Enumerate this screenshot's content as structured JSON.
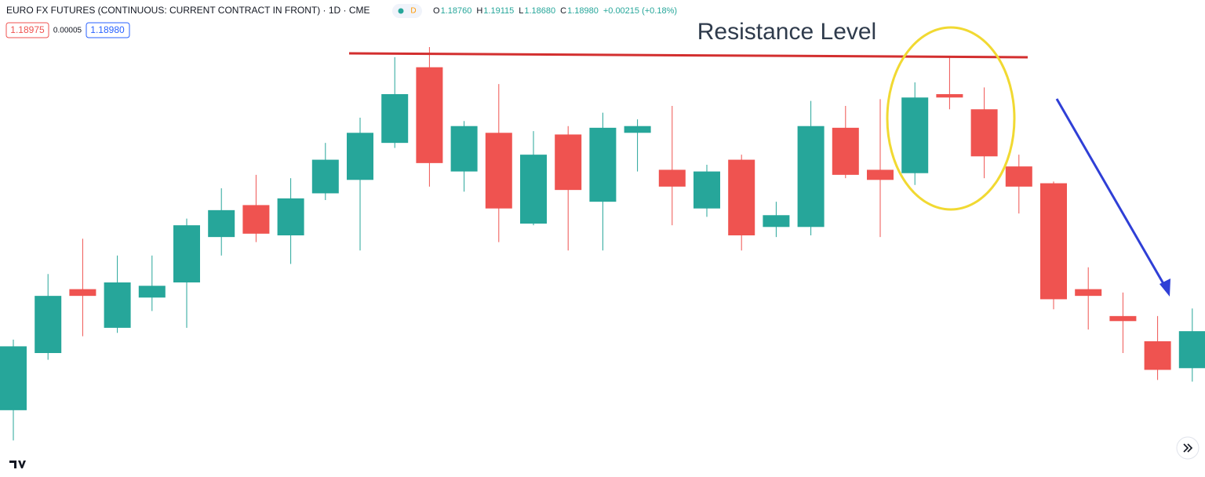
{
  "header": {
    "title": "EURO FX FUTURES (CONTINUOUS: CURRENT CONTRACT IN FRONT) · 1D · CME",
    "badge": "D",
    "ohlc": [
      {
        "key": "O",
        "value": "1.18760"
      },
      {
        "key": "H",
        "value": "1.19115"
      },
      {
        "key": "L",
        "value": "1.18680"
      },
      {
        "key": "C",
        "value": "1.18980"
      }
    ],
    "change": "+0.00215 (+0.18%)",
    "bid": "1.18975",
    "spread": "0.00005",
    "ask": "1.18980"
  },
  "chart_data": {
    "type": "candlestick",
    "annotation": "Resistance Level",
    "up_color": "#26a69a",
    "down_color": "#ef5350",
    "ylim": [
      1.1815,
      1.2095
    ],
    "open": [
      1.1851,
      1.1885,
      1.1923,
      1.19,
      1.1918,
      1.1927,
      1.1954,
      1.1973,
      1.1955,
      1.198,
      1.1988,
      1.201,
      1.2055,
      1.1993,
      1.2016,
      1.1962,
      1.2015,
      1.1975,
      1.2016,
      1.1994,
      1.1971,
      1.2,
      1.196,
      1.196,
      1.2019,
      1.1994,
      1.1992,
      1.2039,
      1.203,
      1.1996,
      1.1986,
      1.1923,
      1.1907,
      1.1892,
      1.1876
    ],
    "high": [
      1.1893,
      1.1932,
      1.1953,
      1.1943,
      1.1943,
      1.1965,
      1.1983,
      1.1991,
      1.1989,
      1.201,
      1.2025,
      1.2061,
      1.2067,
      1.2023,
      1.2045,
      1.2017,
      1.202,
      1.2028,
      1.2024,
      1.2032,
      1.1997,
      1.2003,
      1.1975,
      1.2035,
      1.2032,
      1.2036,
      1.2046,
      1.2061,
      1.2043,
      1.2003,
      1.1987,
      1.1936,
      1.1921,
      1.1907,
      1.19115
    ],
    "low": [
      1.1833,
      1.1881,
      1.1895,
      1.1897,
      1.191,
      1.19,
      1.1943,
      1.1951,
      1.1938,
      1.1976,
      1.1946,
      1.2007,
      1.1984,
      1.1981,
      1.1951,
      1.1961,
      1.1946,
      1.1946,
      1.1993,
      1.1961,
      1.1966,
      1.1946,
      1.1954,
      1.1955,
      1.1989,
      1.1954,
      1.1985,
      1.203,
      1.1989,
      1.1968,
      1.1911,
      1.1899,
      1.1885,
      1.1869,
      1.1868
    ],
    "close": [
      1.1889,
      1.1919,
      1.1919,
      1.1927,
      1.1925,
      1.1961,
      1.197,
      1.1956,
      1.1977,
      1.2,
      1.2016,
      1.2039,
      1.1998,
      1.202,
      1.1971,
      1.2003,
      1.1982,
      1.2019,
      1.202,
      1.1984,
      1.1993,
      1.1955,
      1.1967,
      1.202,
      1.1991,
      1.1988,
      1.2037,
      1.2037,
      1.2002,
      1.1984,
      1.1917,
      1.1919,
      1.1904,
      1.1875,
      1.1898
    ]
  }
}
